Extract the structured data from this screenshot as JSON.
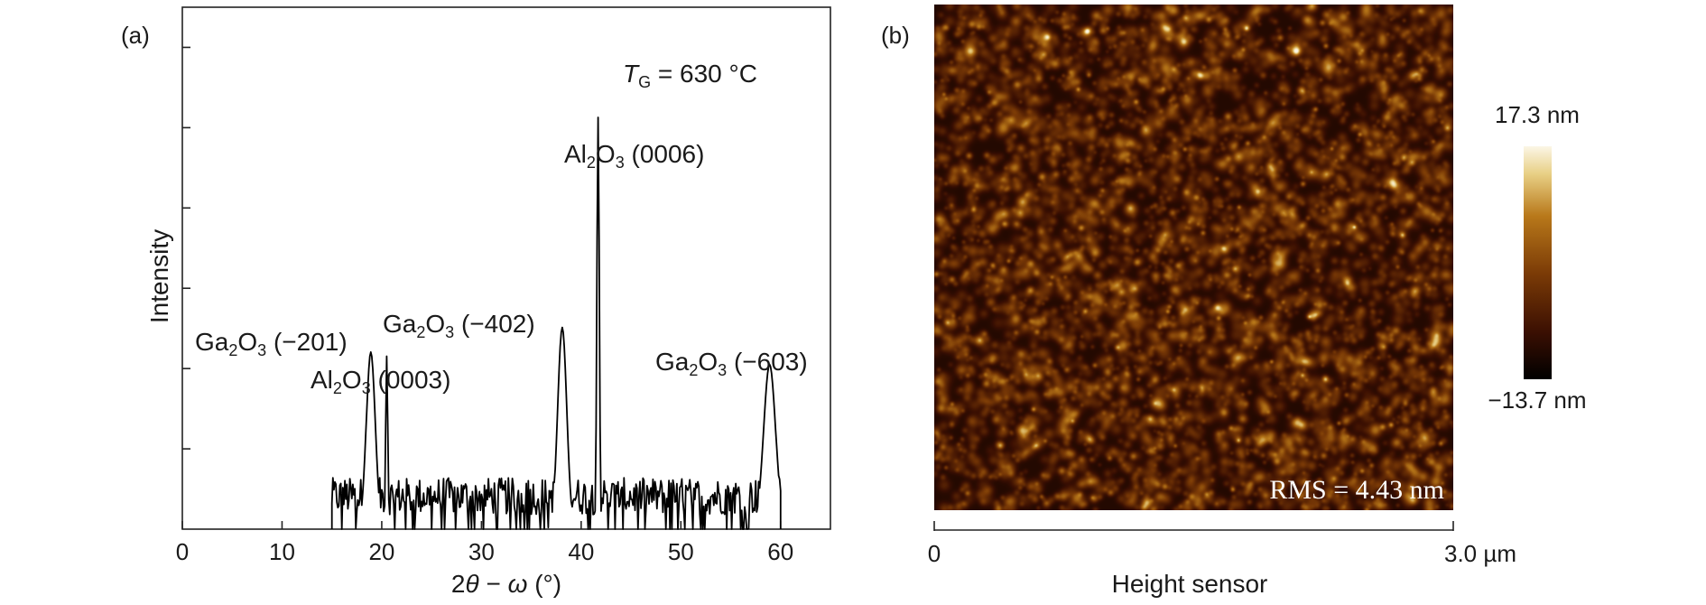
{
  "panels": {
    "a_label": "(a)",
    "b_label": "(b)"
  },
  "chart_data": [
    {
      "type": "line",
      "panel": "(a)",
      "xlabel": "2θ − ω (°)",
      "xlabel_parts": [
        "2",
        "θ",
        " − ",
        "ω",
        " (°)"
      ],
      "ylabel": "Intensity",
      "xlim": [
        0,
        65
      ],
      "ylim": [
        0,
        1
      ],
      "x_ticks": [
        0,
        10,
        20,
        30,
        40,
        50,
        60
      ],
      "y_tick_count": 6,
      "scan_range": [
        15,
        60
      ],
      "noise_level": 0.1,
      "annotation": {
        "symbol": "T",
        "subscript": "G",
        "value": "= 630 °C"
      },
      "peaks": [
        {
          "x": 18.9,
          "height": 0.43,
          "width": 0.45,
          "label": [
            "Ga",
            "2",
            "O",
            "3",
            " (−201)"
          ]
        },
        {
          "x": 20.5,
          "height": 0.42,
          "width": 0.1,
          "label": [
            "Al",
            "2",
            "O",
            "3",
            " (0003)"
          ]
        },
        {
          "x": 38.1,
          "height": 0.49,
          "width": 0.45,
          "label": [
            "Ga",
            "2",
            "O",
            "3",
            " (−402)"
          ]
        },
        {
          "x": 41.7,
          "height": 1.0,
          "width": 0.12,
          "label": [
            "Al",
            "2",
            "O",
            "3",
            " (0006)"
          ]
        },
        {
          "x": 58.9,
          "height": 0.4,
          "width": 0.6,
          "label": [
            "Ga",
            "2",
            "O",
            "3",
            " (−603)"
          ]
        }
      ]
    },
    {
      "type": "heatmap",
      "panel": "(b)",
      "xlabel": "Height sensor",
      "x_range_labels": [
        "0",
        "3.0 µm"
      ],
      "colorbar": {
        "max_label": "17.3 nm",
        "min_label": "−13.7 nm",
        "colors": [
          "#000000",
          "#3a0f02",
          "#7a3a06",
          "#b8781a",
          "#e8cf84",
          "#fbf6e6"
        ]
      },
      "rms_label": "RMS = 4.43 nm"
    }
  ]
}
